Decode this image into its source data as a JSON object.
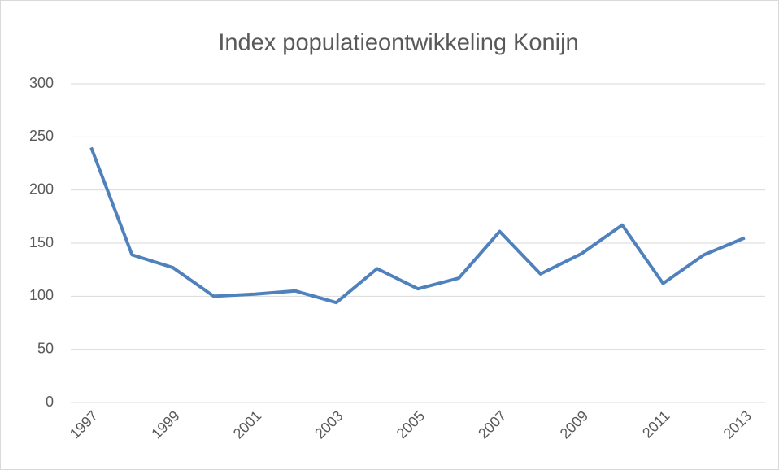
{
  "chart_data": {
    "type": "line",
    "title": "Index populatieontwikkeling Konijn",
    "x": [
      1997,
      1998,
      1999,
      2000,
      2001,
      2002,
      2003,
      2004,
      2005,
      2006,
      2007,
      2008,
      2009,
      2010,
      2011,
      2012,
      2013
    ],
    "values": [
      240,
      139,
      127,
      100,
      102,
      105,
      94,
      126,
      107,
      117,
      161,
      121,
      140,
      167,
      112,
      139,
      155
    ],
    "color": "#4f81bd",
    "xlim": [
      1996.5,
      2013.5
    ],
    "xticks": [
      1997,
      1999,
      2001,
      2003,
      2005,
      2007,
      2009,
      2011,
      2013
    ],
    "ylim": [
      0,
      300
    ],
    "yticks": [
      0,
      50,
      100,
      150,
      200,
      250,
      300
    ],
    "grid": true
  }
}
